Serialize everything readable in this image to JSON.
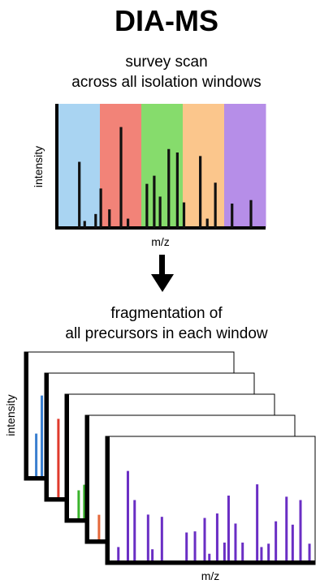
{
  "title": "DIA-MS",
  "survey_caption": [
    "survey scan",
    "across all isolation windows"
  ],
  "fragment_caption": [
    "fragmentation of",
    "all precursors in each window"
  ],
  "survey_chart": {
    "xlabel": "m/z",
    "ylabel": "intensity",
    "windows": [
      {
        "color": "#a9d4f2"
      },
      {
        "color": "#f28378"
      },
      {
        "color": "#86dc6c"
      },
      {
        "color": "#fbc68c"
      },
      {
        "color": "#b68ee8"
      }
    ],
    "peak_color": "#111111",
    "peaks": [
      {
        "mz": 0.065,
        "intensity": 0.57
      },
      {
        "mz": 0.094,
        "intensity": 0.06
      },
      {
        "mz": 0.154,
        "intensity": 0.12
      },
      {
        "mz": 0.182,
        "intensity": 0.34
      },
      {
        "mz": 0.229,
        "intensity": 0.16
      },
      {
        "mz": 0.292,
        "intensity": 0.87
      },
      {
        "mz": 0.33,
        "intensity": 0.08
      },
      {
        "mz": 0.433,
        "intensity": 0.38
      },
      {
        "mz": 0.473,
        "intensity": 0.45
      },
      {
        "mz": 0.505,
        "intensity": 0.27
      },
      {
        "mz": 0.552,
        "intensity": 0.68
      },
      {
        "mz": 0.599,
        "intensity": 0.65
      },
      {
        "mz": 0.635,
        "intensity": 0.22
      },
      {
        "mz": 0.724,
        "intensity": 0.62
      },
      {
        "mz": 0.762,
        "intensity": 0.08
      },
      {
        "mz": 0.806,
        "intensity": 0.39
      },
      {
        "mz": 0.897,
        "intensity": 0.21
      },
      {
        "mz": 1.0,
        "intensity": 0.24
      }
    ]
  },
  "fragment_panels": {
    "xlabel": "m/z",
    "ylabel": "intensity",
    "stack": [
      {
        "color": "#3a7fd0",
        "peaks": [
          {
            "mz": 0.02,
            "intensity": 0.38
          },
          {
            "mz": 0.05,
            "intensity": 0.72
          },
          {
            "mz": 0.085,
            "intensity": 0.45
          }
        ]
      },
      {
        "color": "#e03a2c",
        "peaks": [
          {
            "mz": 0.03,
            "intensity": 0.7
          }
        ]
      },
      {
        "color": "#3ab42c",
        "peaks": [
          {
            "mz": 0.03,
            "intensity": 0.25
          },
          {
            "mz": 0.06,
            "intensity": 0.3
          },
          {
            "mz": 0.09,
            "intensity": 0.5
          }
        ]
      },
      {
        "color": "#e4683a",
        "peaks": [
          {
            "mz": 0.03,
            "intensity": 0.22
          }
        ]
      },
      {
        "color": "#6a2ec4",
        "peaks": [
          {
            "mz": 0.025,
            "intensity": 0.12
          },
          {
            "mz": 0.076,
            "intensity": 0.8
          },
          {
            "mz": 0.112,
            "intensity": 0.54
          },
          {
            "mz": 0.184,
            "intensity": 0.41
          },
          {
            "mz": 0.207,
            "intensity": 0.1
          },
          {
            "mz": 0.258,
            "intensity": 0.39
          },
          {
            "mz": 0.39,
            "intensity": 0.25
          },
          {
            "mz": 0.435,
            "intensity": 0.26
          },
          {
            "mz": 0.487,
            "intensity": 0.38
          },
          {
            "mz": 0.512,
            "intensity": 0.06
          },
          {
            "mz": 0.554,
            "intensity": 0.42
          },
          {
            "mz": 0.593,
            "intensity": 0.16
          },
          {
            "mz": 0.615,
            "intensity": 0.58
          },
          {
            "mz": 0.652,
            "intensity": 0.33
          },
          {
            "mz": 0.69,
            "intensity": 0.16
          },
          {
            "mz": 0.768,
            "intensity": 0.68
          },
          {
            "mz": 0.791,
            "intensity": 0.12
          },
          {
            "mz": 0.829,
            "intensity": 0.15
          },
          {
            "mz": 0.868,
            "intensity": 0.35
          },
          {
            "mz": 0.925,
            "intensity": 0.57
          },
          {
            "mz": 0.958,
            "intensity": 0.32
          },
          {
            "mz": 1.0,
            "intensity": 0.54
          },
          {
            "mz": 1.048,
            "intensity": 0.15
          }
        ]
      }
    ]
  },
  "arrow_color": "#000000"
}
